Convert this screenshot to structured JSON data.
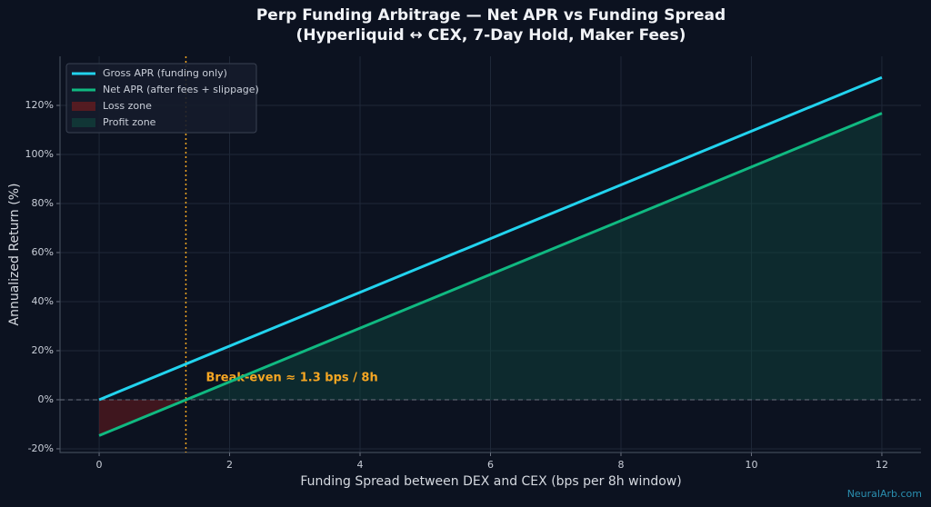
{
  "chart_data": {
    "type": "line",
    "title": [
      "Perp Funding Arbitrage — Net APR vs Funding Spread",
      "(Hyperliquid ↔ CEX, 7-Day Hold, Maker Fees)"
    ],
    "x_label": "Funding Spread between DEX and CEX (bps per 8h window)",
    "y_label": "Annualized Return (%)",
    "x": [
      0,
      2,
      4,
      6,
      8,
      10,
      12
    ],
    "series": [
      {
        "name": "Gross APR (funding only)",
        "color": "#22d3ee",
        "values": [
          0,
          21.9,
          43.8,
          65.7,
          87.6,
          109.5,
          131.4
        ]
      },
      {
        "name": "Net APR (after fees + slippage)",
        "color": "#10b981",
        "values": [
          -14.6,
          7.3,
          29.2,
          51.1,
          73.0,
          94.9,
          116.8
        ]
      }
    ],
    "zones": [
      {
        "name": "Loss zone",
        "color": "#7f1d1d"
      },
      {
        "name": "Profit zone",
        "color": "#0f4a40"
      }
    ],
    "breakeven": {
      "value": 1.33,
      "label": "Break-even ≈ 1.3 bps / 8h",
      "color": "#f5a623"
    },
    "hline": 0,
    "xlim": [
      -0.6,
      12.6
    ],
    "ylim": [
      -21.5,
      140
    ],
    "xticks": [
      0,
      2,
      4,
      6,
      8,
      10,
      12
    ],
    "yticks": [
      {
        "value": -20,
        "label": "-20%"
      },
      {
        "value": 0,
        "label": "0%"
      },
      {
        "value": 20,
        "label": "20%"
      },
      {
        "value": 40,
        "label": "40%"
      },
      {
        "value": 60,
        "label": "60%"
      },
      {
        "value": 80,
        "label": "80%"
      },
      {
        "value": 100,
        "label": "100%"
      },
      {
        "value": 120,
        "label": "120%"
      }
    ],
    "grid": true,
    "legend": "upper-left",
    "watermark": "NeuralArb.com"
  }
}
